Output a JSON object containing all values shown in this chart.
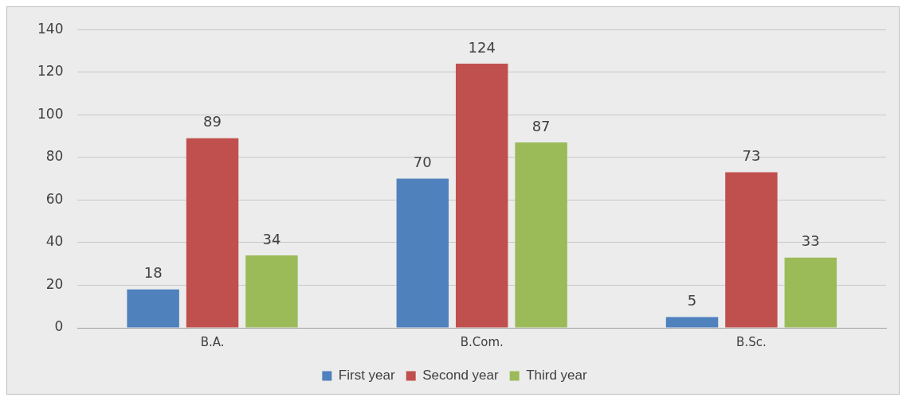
{
  "chart_data": {
    "type": "bar",
    "categories": [
      "B.A.",
      "B.Com.",
      "B.Sc."
    ],
    "series": [
      {
        "name": "First year",
        "color": "#4f81bd",
        "values": [
          18,
          70,
          5
        ]
      },
      {
        "name": "Second year",
        "color": "#c0504d",
        "values": [
          89,
          124,
          73
        ]
      },
      {
        "name": "Third year",
        "color": "#9bbb59",
        "values": [
          34,
          87,
          33
        ]
      }
    ],
    "ylim": [
      0,
      140
    ],
    "yticks": [
      0,
      20,
      40,
      60,
      80,
      100,
      120,
      140
    ],
    "grid": "y",
    "legend": "bottom",
    "data_labels": true
  }
}
